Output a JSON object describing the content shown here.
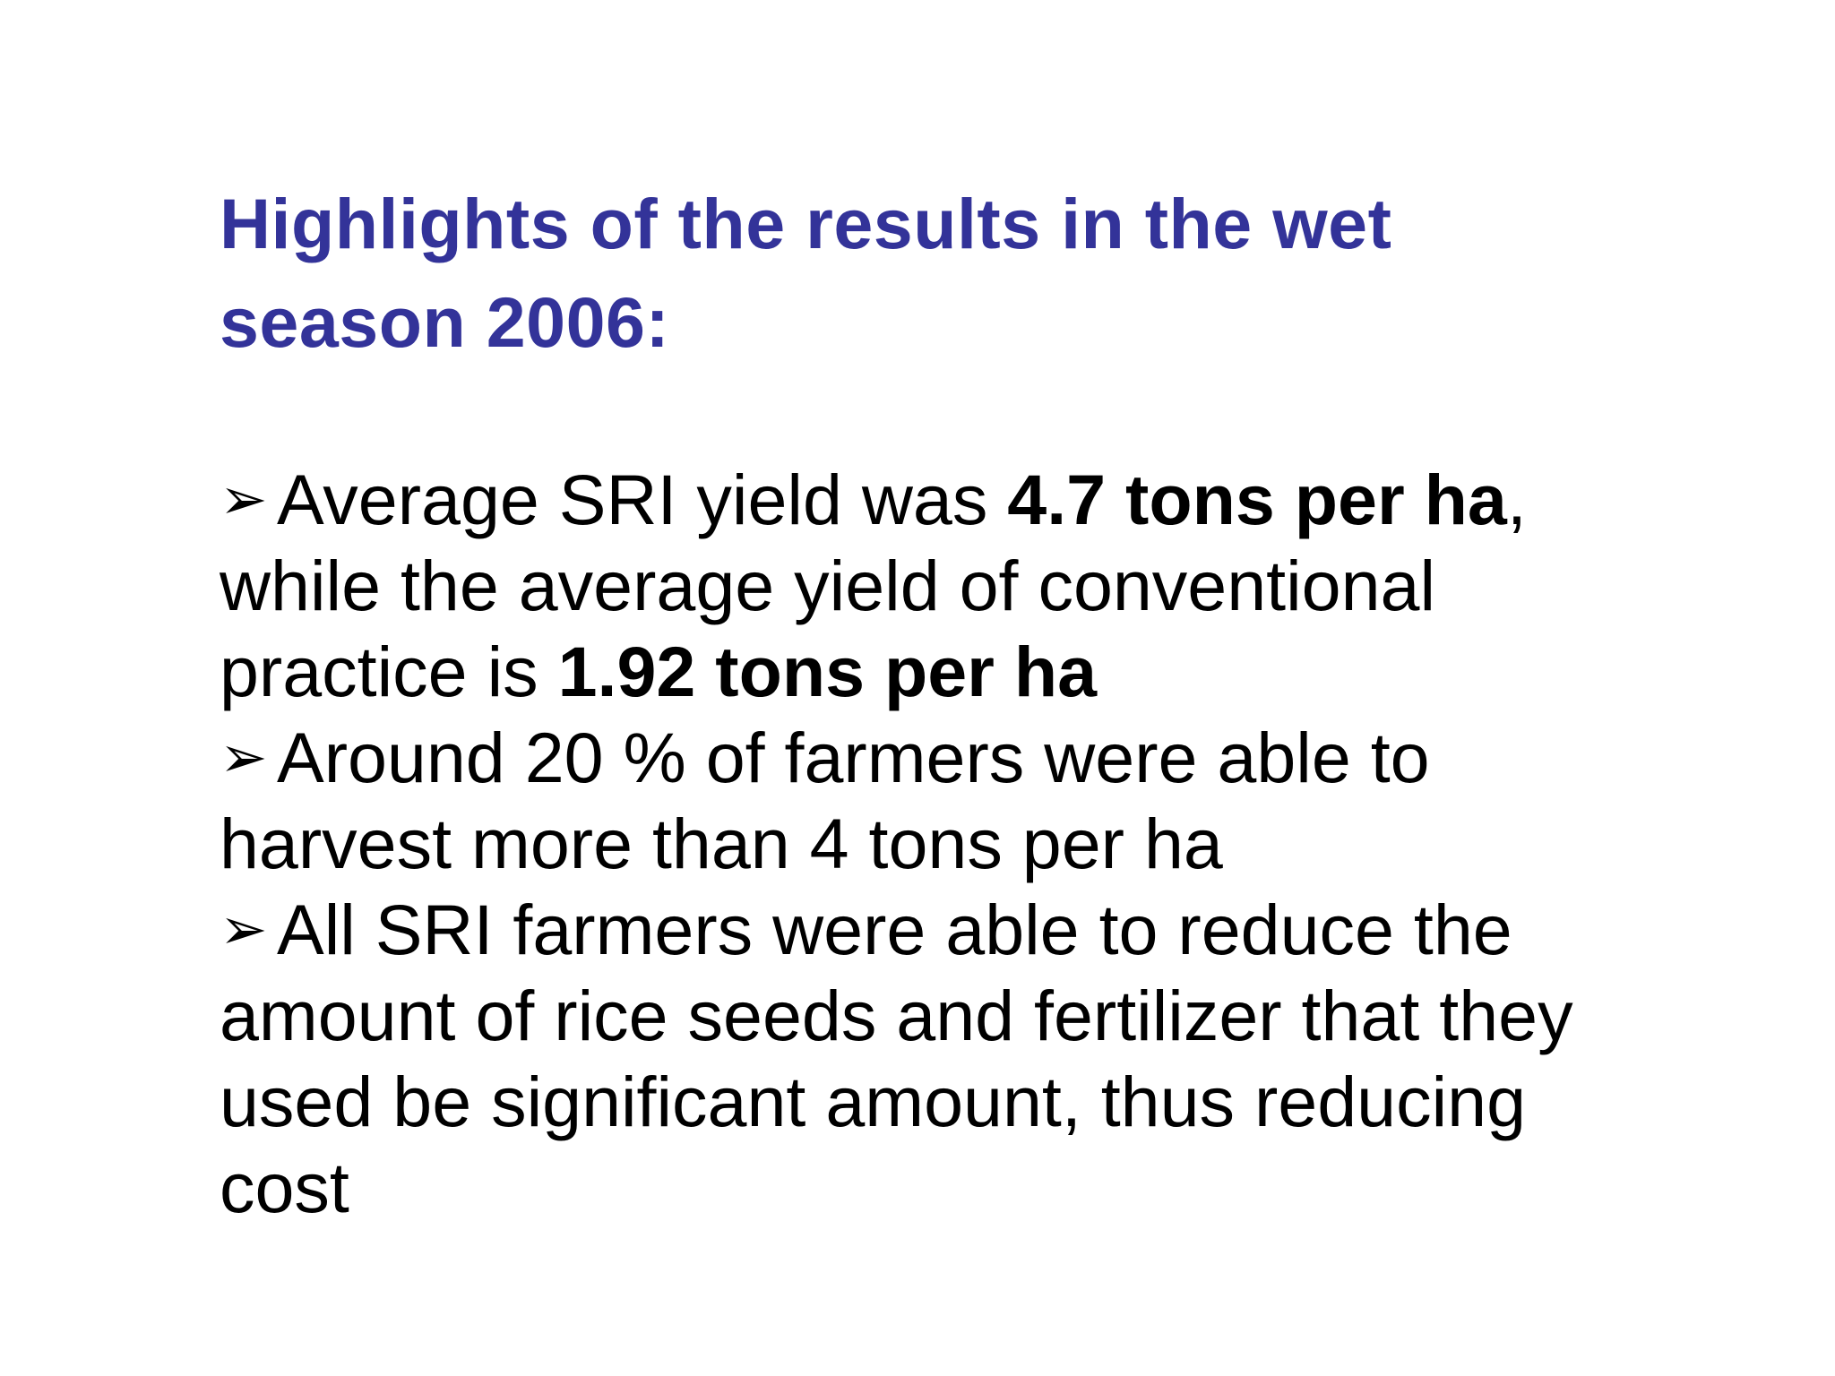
{
  "slide": {
    "title": "Highlights of the results in the wet season 2006:",
    "bullet_symbol": "➢",
    "bullets": [
      {
        "text_1": "Average SRI yield was ",
        "bold_1": "4.7 tons per ha",
        "text_2": ", while the average yield of conventional practice is ",
        "bold_2": "1.92 tons per ha"
      },
      {
        "text": "Around 20 % of farmers were able to harvest more than 4 tons per ha"
      },
      {
        "text": "All SRI farmers were able to reduce the amount of rice seeds and fertilizer that they used be significant amount, thus reducing cost"
      }
    ]
  }
}
